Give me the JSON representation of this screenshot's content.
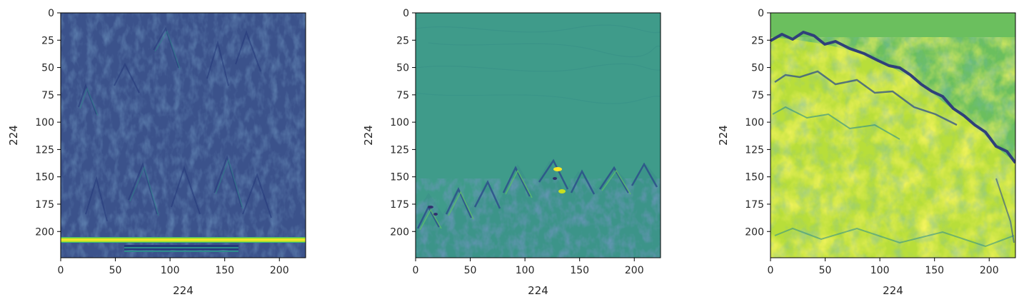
{
  "chart_data": [
    {
      "type": "heatmap",
      "title": "",
      "xlabel": "224",
      "ylabel": "224",
      "xlim": [
        0,
        224
      ],
      "ylim": [
        224,
        0
      ],
      "xticks": [
        0,
        50,
        100,
        150,
        200
      ],
      "yticks": [
        0,
        25,
        50,
        75,
        100,
        125,
        150,
        175,
        200
      ],
      "grid": false,
      "legend": "none",
      "colormap": "viridis",
      "colors": {
        "background": "#3b528b",
        "texture_dark": "#2a3f7a",
        "texture_light": "#2c7d8e",
        "band": "#b5de2b",
        "band_core": "#fde725"
      },
      "features": [
        {
          "kind": "horizontal-band",
          "y": 207.5,
          "x_range": [
            0,
            224
          ],
          "value": "high"
        },
        {
          "kind": "striped-band",
          "y_range": [
            212,
            218
          ],
          "x_range": [
            58,
            162
          ],
          "value": "medium"
        }
      ]
    },
    {
      "type": "heatmap",
      "title": "",
      "xlabel": "224",
      "ylabel": "224",
      "xlim": [
        0,
        224
      ],
      "ylim": [
        224,
        0
      ],
      "xticks": [
        0,
        50,
        100,
        150,
        200
      ],
      "yticks": [
        0,
        25,
        50,
        75,
        100,
        125,
        150,
        175,
        200
      ],
      "grid": false,
      "legend": "none",
      "colormap": "viridis",
      "colors": {
        "background": "#3f9b8a",
        "texture_dark": "#2c4f8a",
        "texture_light": "#5fc06a",
        "highlight": "#fde725"
      },
      "features": [
        {
          "kind": "ridge-texture",
          "y_range": [
            125,
            224
          ],
          "peaks_x": [
            13,
            43,
            65,
            88,
            108,
            130,
            155,
            195
          ]
        }
      ]
    },
    {
      "type": "heatmap",
      "title": "",
      "xlabel": "224",
      "ylabel": "224",
      "xlim": [
        0,
        224
      ],
      "ylim": [
        224,
        0
      ],
      "xticks": [
        0,
        50,
        100,
        150,
        200
      ],
      "yticks": [
        0,
        25,
        50,
        75,
        100,
        125,
        150,
        175,
        200
      ],
      "grid": false,
      "legend": "none",
      "colormap": "viridis",
      "colors": {
        "sky": "#6bbf5e",
        "ground": "#b8de3a",
        "ground_light": "#e3e418",
        "edge": "#2f3f7a",
        "shadow": "#2a8c8c"
      },
      "features": [
        {
          "kind": "diagonal-edge",
          "points": [
            [
              0,
              25
            ],
            [
              50,
              33
            ],
            [
              110,
              50
            ],
            [
              160,
              85
            ],
            [
              210,
              128
            ],
            [
              224,
              137
            ]
          ]
        }
      ]
    }
  ]
}
